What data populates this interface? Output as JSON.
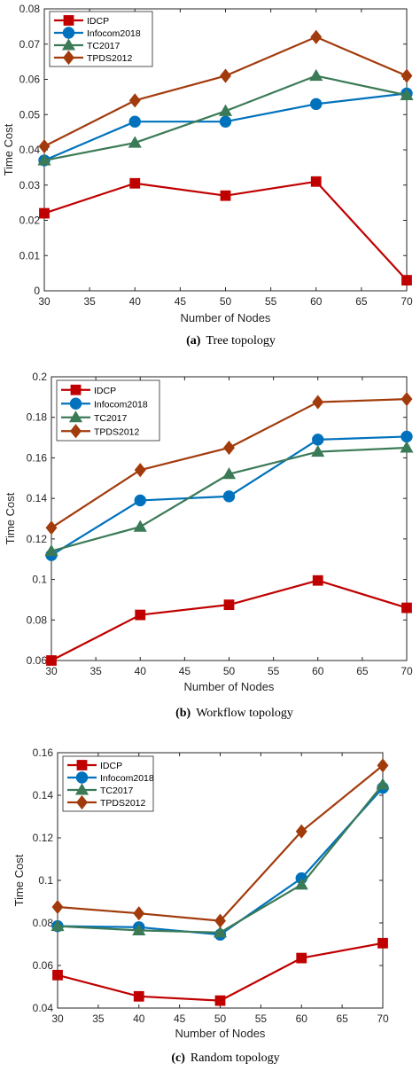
{
  "chart_data": [
    {
      "type": "line",
      "caption_label": "(a)",
      "caption_text": "Tree topology",
      "xlabel": "Number of Nodes",
      "ylabel": "Time Cost",
      "xlim": [
        30,
        70
      ],
      "ylim": [
        0,
        0.08
      ],
      "xticks": [
        "30",
        "35",
        "40",
        "45",
        "50",
        "55",
        "60",
        "65",
        "70"
      ],
      "yticks": [
        "0",
        "0.01",
        "0.02",
        "0.03",
        "0.04",
        "0.05",
        "0.06",
        "0.07",
        "0.08"
      ],
      "legend_position": "top-left",
      "x": [
        30,
        40,
        50,
        60,
        70
      ],
      "series": [
        {
          "name": "IDCP",
          "values": [
            0.022,
            0.0305,
            0.027,
            0.031,
            0.003
          ]
        },
        {
          "name": "Infocom2018",
          "values": [
            0.037,
            0.048,
            0.048,
            0.053,
            0.056
          ]
        },
        {
          "name": "TC2017",
          "values": [
            0.037,
            0.042,
            0.051,
            0.061,
            0.0555
          ]
        },
        {
          "name": "TPDS2012",
          "values": [
            0.041,
            0.054,
            0.061,
            0.072,
            0.061
          ]
        }
      ]
    },
    {
      "type": "line",
      "caption_label": "(b)",
      "caption_text": "Workflow topology",
      "xlabel": "Number of Nodes",
      "ylabel": "Time Cost",
      "xlim": [
        30,
        70
      ],
      "ylim": [
        0.06,
        0.2
      ],
      "xticks": [
        "30",
        "35",
        "40",
        "45",
        "50",
        "55",
        "60",
        "65",
        "70"
      ],
      "yticks": [
        "0.06",
        "0.08",
        "0.1",
        "0.12",
        "0.14",
        "0.16",
        "0.18",
        "0.2"
      ],
      "legend_position": "top-left",
      "x": [
        30,
        40,
        50,
        60,
        70
      ],
      "series": [
        {
          "name": "IDCP",
          "values": [
            0.06,
            0.0825,
            0.0875,
            0.0995,
            0.086
          ]
        },
        {
          "name": "Infocom2018",
          "values": [
            0.112,
            0.139,
            0.141,
            0.169,
            0.1705
          ]
        },
        {
          "name": "TC2017",
          "values": [
            0.114,
            0.126,
            0.152,
            0.163,
            0.165
          ]
        },
        {
          "name": "TPDS2012",
          "values": [
            0.1255,
            0.154,
            0.165,
            0.1875,
            0.189
          ]
        }
      ]
    },
    {
      "type": "line",
      "caption_label": "(c)",
      "caption_text": "Random topology",
      "xlabel": "Number of Nodes",
      "ylabel": "Time Cost",
      "xlim": [
        30,
        70
      ],
      "ylim": [
        0.04,
        0.16
      ],
      "xticks": [
        "30",
        "35",
        "40",
        "45",
        "50",
        "55",
        "60",
        "65",
        "70"
      ],
      "yticks": [
        "0.04",
        "0.06",
        "0.08",
        "0.1",
        "0.12",
        "0.14",
        "0.16"
      ],
      "legend_position": "top-left",
      "x": [
        30,
        40,
        50,
        60,
        70
      ],
      "series": [
        {
          "name": "IDCP",
          "values": [
            0.0555,
            0.0455,
            0.0435,
            0.0635,
            0.0705
          ]
        },
        {
          "name": "Infocom2018",
          "values": [
            0.0785,
            0.078,
            0.0745,
            0.101,
            0.1435
          ]
        },
        {
          "name": "TC2017",
          "values": [
            0.0785,
            0.0765,
            0.0755,
            0.098,
            0.145
          ]
        },
        {
          "name": "TPDS2012",
          "values": [
            0.0875,
            0.0845,
            0.081,
            0.123,
            0.154
          ]
        }
      ]
    }
  ],
  "styles": {
    "colors": [
      "#c00000",
      "#0072bd",
      "#3b7a57",
      "#a23b0c"
    ],
    "markers": [
      "square",
      "circle",
      "triangle",
      "diamond"
    ]
  }
}
